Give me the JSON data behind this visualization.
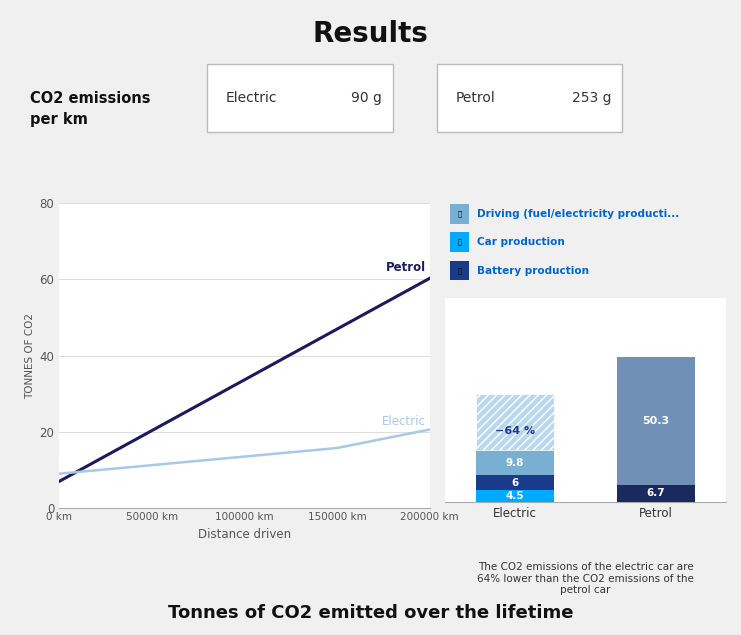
{
  "header_bg": "#ccddf0",
  "header_title": "Results",
  "header_label": "CO2 emissions\nper km",
  "electric_label": "Electric",
  "electric_value": "90 g",
  "petrol_label": "Petrol",
  "petrol_value": "253 g",
  "outer_bg": "#f0f0f0",
  "chart_bg": "#ffffff",
  "line_petrol_color": "#1a1a5e",
  "line_electric_color": "#a8c8e8",
  "petrol_label_color": "#1a1a5e",
  "electric_label_color": "#a8c8e8",
  "line_x": [
    0,
    50000,
    100000,
    150000,
    200000
  ],
  "line_petrol_y": [
    7,
    20.325,
    33.65,
    46.975,
    60.3
  ],
  "line_electric_y": [
    9,
    11.25,
    13.5,
    15.75,
    20.6
  ],
  "xlabel": "Distance driven",
  "ylabel": "TONNES OF CO2",
  "yticks": [
    0,
    20,
    40,
    60,
    80
  ],
  "xtick_labels": [
    "0 km",
    "50000 km",
    "100000 km",
    "150000 km",
    "200000 km"
  ],
  "bar_electric_val1": 4.5,
  "bar_electric_val2": 6.0,
  "bar_electric_val3": 9.8,
  "bar_electric_hatch": 22.0,
  "bar_petrol_val1": 6.7,
  "bar_petrol_val2": 50.3,
  "bar_color_battery": "#00aaff",
  "bar_color_car_electric": "#1a3a8a",
  "bar_color_driving_electric": "#7aafd4",
  "bar_color_hatch_fill": "#b8d8f0",
  "bar_color_driving_petrol": "#7090b8",
  "bar_color_car_petrol": "#1a2a5e",
  "hatch_pattern": "////",
  "pct_label": "−64 %",
  "pct_color": "#1a3a8a",
  "legend_items": [
    "Driving (fuel/electricity producti...",
    "Car production",
    "Battery production"
  ],
  "legend_colors": [
    "#7aafd4",
    "#00aaff",
    "#1a3a8a"
  ],
  "footnote_line1": "The CO2 emissions of the electric car are",
  "footnote_line2": "64% lower than the CO2 emissions of the",
  "footnote_line3": "petrol car",
  "footer_title": "Tonnes of CO2 emitted over the lifetime",
  "bar_width": 0.55
}
